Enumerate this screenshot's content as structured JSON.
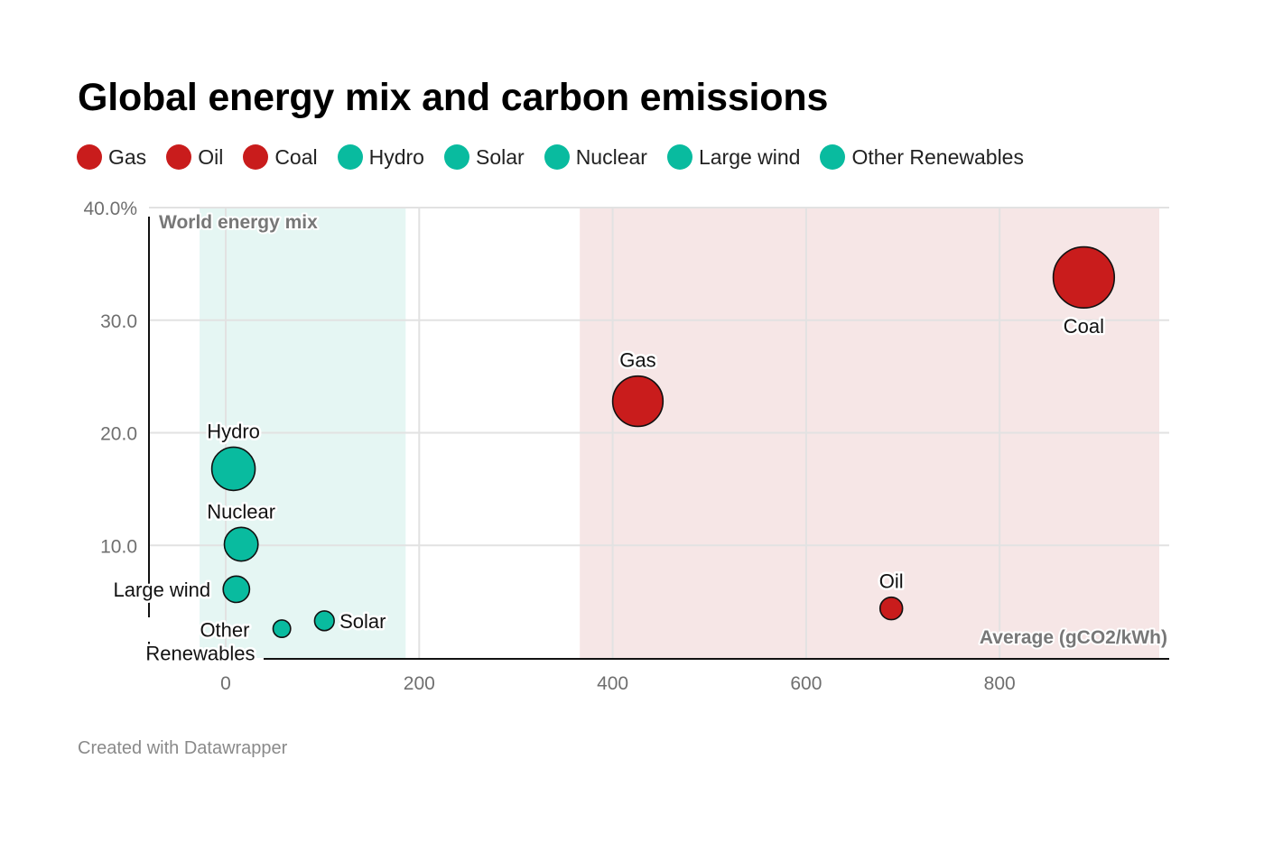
{
  "title": "Global energy mix and carbon emissions",
  "footer": "Created with Datawrapper",
  "colors": {
    "fossil": "#c91c1c",
    "low_carbon": "#09bb9f",
    "fossil_band": "#f6e6e6",
    "low_carbon_band": "#e5f6f3",
    "grid": "#e2e2e2"
  },
  "legend": [
    {
      "label": "Gas",
      "group": "fossil"
    },
    {
      "label": "Oil",
      "group": "fossil"
    },
    {
      "label": "Coal",
      "group": "fossil"
    },
    {
      "label": "Hydro",
      "group": "low_carbon"
    },
    {
      "label": "Solar",
      "group": "low_carbon"
    },
    {
      "label": "Nuclear",
      "group": "low_carbon"
    },
    {
      "label": "Large wind",
      "group": "low_carbon"
    },
    {
      "label": "Other Renewables",
      "group": "low_carbon"
    }
  ],
  "chart_data": {
    "type": "scatter",
    "title": "Global energy mix and carbon emissions",
    "xlabel": "Average (gCO2/kWh)",
    "ylabel": "World energy mix",
    "xlim": [
      -60,
      980
    ],
    "ylim": [
      0,
      40
    ],
    "x_ticks": [
      0,
      200,
      400,
      600,
      800
    ],
    "x_tick_labels": [
      "0",
      "200",
      "400",
      "600",
      "800"
    ],
    "y_ticks": [
      10,
      20,
      30,
      40
    ],
    "y_tick_labels": [
      "10.0",
      "20.0",
      "30.0",
      "40.0%"
    ],
    "grid": true,
    "bubble_size": "world energy mix share",
    "bands": [
      {
        "group": "low_carbon",
        "x_range": [
          -27,
          186
        ]
      },
      {
        "group": "fossil",
        "x_range": [
          366,
          965
        ]
      }
    ],
    "points": [
      {
        "name": "Hydro",
        "label": "Hydro",
        "x": 8,
        "y": 16.8,
        "group": "low_carbon",
        "label_pos": "above"
      },
      {
        "name": "Nuclear",
        "label": "Nuclear",
        "x": 16,
        "y": 10.1,
        "group": "low_carbon",
        "label_pos": "above"
      },
      {
        "name": "Large wind",
        "label": "Large wind",
        "x": 11,
        "y": 6.1,
        "group": "low_carbon",
        "label_pos": "left"
      },
      {
        "name": "Other Renewables",
        "label_lines": [
          "Other",
          "Renewables"
        ],
        "x": 58,
        "y": 2.6,
        "group": "low_carbon",
        "label_pos": "left-below"
      },
      {
        "name": "Solar",
        "label": "Solar",
        "x": 102,
        "y": 3.3,
        "group": "low_carbon",
        "label_pos": "right"
      },
      {
        "name": "Gas",
        "label": "Gas",
        "x": 426,
        "y": 22.8,
        "group": "fossil",
        "label_pos": "above"
      },
      {
        "name": "Oil",
        "label": "Oil",
        "x": 688,
        "y": 4.4,
        "group": "fossil",
        "label_pos": "above"
      },
      {
        "name": "Coal",
        "label": "Coal",
        "x": 887,
        "y": 33.8,
        "group": "fossil",
        "label_pos": "below"
      }
    ]
  }
}
